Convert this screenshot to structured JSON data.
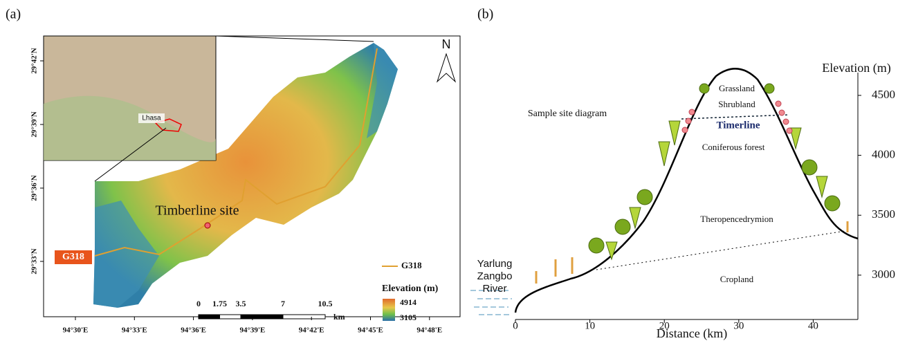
{
  "panel_a": {
    "label": "(a)",
    "inset_city": "Lhasa",
    "north": "N",
    "road_label": "G318",
    "site_label": "Timberline site",
    "latitudes": [
      "29°42'N",
      "29°39'N",
      "29°36'N",
      "29°33'N"
    ],
    "longitudes": [
      "94°30'E",
      "94°33'E",
      "94°36'E",
      "94°39'E",
      "94°42'E",
      "94°45'E",
      "94°48'E"
    ],
    "scale_bar": {
      "ticks": [
        0,
        1.75,
        3.5,
        7,
        10.5
      ],
      "unit": "km"
    },
    "legend": {
      "road": "G318",
      "elevation_title": "Elevation (m)",
      "max": 4914,
      "min": 3105
    }
  },
  "panel_b": {
    "label": "(b)",
    "title": "Sample site diagram",
    "x_label": "Distance (km)",
    "xlim": [
      0,
      46
    ],
    "xticks": [
      0,
      10,
      20,
      30,
      40
    ],
    "y_label": "Elevation (m)",
    "ylim": [
      2630,
      4690
    ],
    "yticks": [
      3000,
      3500,
      4000,
      4500
    ],
    "zones": {
      "grassland": "Grassland",
      "shrubland": "Shrubland",
      "timberline": "Timerline",
      "coniferous": "Coniferous forest",
      "mixed": "Theropencedrymion",
      "cropland": "Cropland"
    },
    "river": [
      "Yarlung",
      "Zangbo",
      "River"
    ]
  }
}
